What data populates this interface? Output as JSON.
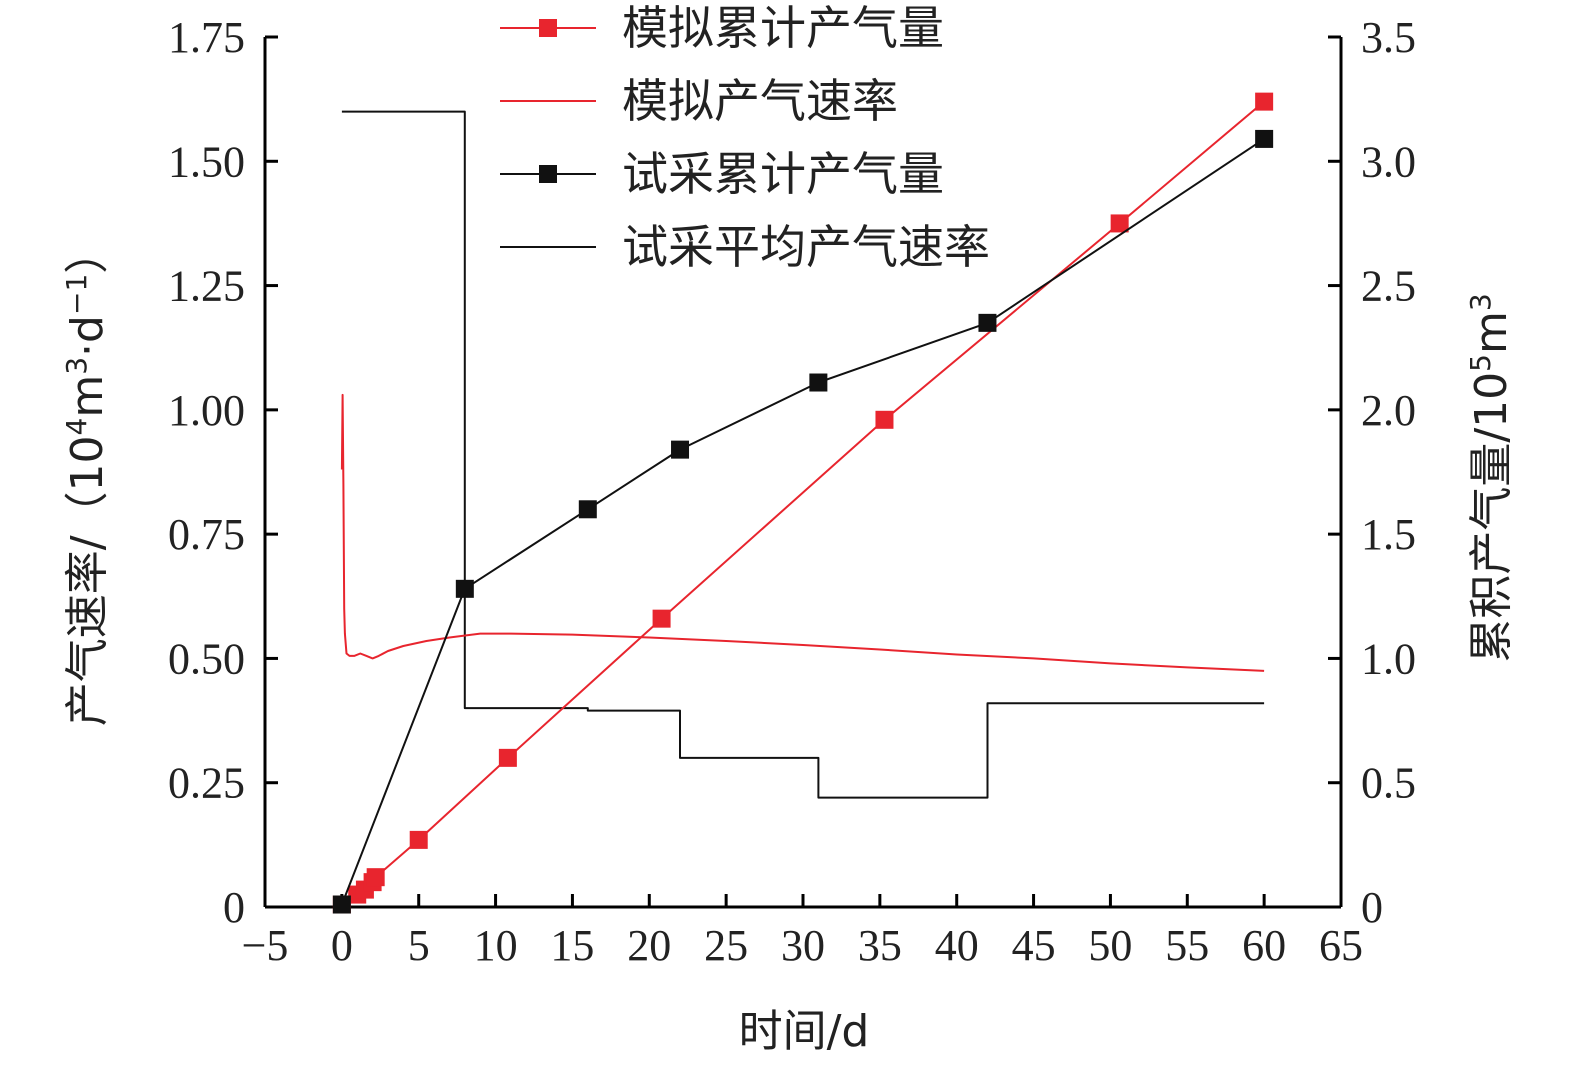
{
  "chart_data": {
    "type": "line",
    "xlabel": "时间/d",
    "ylabel_left_main": "产气速率/（10",
    "ylabel_left_sup1": "4",
    "ylabel_left_mid": "m",
    "ylabel_left_sup2": "3",
    "ylabel_left_mid2": "·d",
    "ylabel_left_sup3": "−1",
    "ylabel_left_end": "）",
    "ylabel_right_main": "累积产气量/10",
    "ylabel_right_sup1": "5",
    "ylabel_right_mid": "m",
    "ylabel_right_sup2": "3",
    "xlim": [
      -5,
      65
    ],
    "ylim_left": [
      0,
      1.75
    ],
    "ylim_right": [
      0,
      3.5
    ],
    "xticks": [
      "−5",
      "0",
      "5",
      "10",
      "15",
      "20",
      "25",
      "30",
      "35",
      "40",
      "45",
      "50",
      "55",
      "60",
      "65"
    ],
    "xtick_values": [
      -5,
      0,
      5,
      10,
      15,
      20,
      25,
      30,
      35,
      40,
      45,
      50,
      55,
      60,
      65
    ],
    "yticks_left": [
      "0",
      "0.25",
      "0.50",
      "0.75",
      "1.00",
      "1.25",
      "1.50",
      "1.75"
    ],
    "ytick_left_values": [
      0,
      0.25,
      0.5,
      0.75,
      1.0,
      1.25,
      1.5,
      1.75
    ],
    "yticks_right": [
      "0",
      "0.5",
      "1.0",
      "1.5",
      "2.0",
      "2.5",
      "3.0",
      "3.5"
    ],
    "ytick_right_values": [
      0,
      0.5,
      1.0,
      1.5,
      2.0,
      2.5,
      3.0,
      3.5
    ],
    "series": [
      {
        "name": "模拟累计产气量",
        "axis": "right",
        "color": "#e8252e",
        "marker": "square",
        "line": true,
        "x": [
          0,
          1,
          1.5,
          2,
          2.2,
          5,
          10.8,
          20.8,
          35.3,
          50.6,
          60
        ],
        "y": [
          0.01,
          0.05,
          0.07,
          0.1,
          0.12,
          0.27,
          0.6,
          1.16,
          1.96,
          2.75,
          3.24
        ]
      },
      {
        "name": "模拟产气速率",
        "axis": "left",
        "color": "#e8252e",
        "marker": "none",
        "line": true,
        "x": [
          0,
          0.05,
          0.1,
          0.15,
          0.2,
          0.3,
          0.5,
          0.8,
          1.2,
          1.6,
          2.0,
          2.4,
          3.0,
          4.0,
          5.5,
          7.0,
          9.0,
          11.0,
          15.0,
          20.0,
          25.0,
          30.0,
          35.0,
          40.0,
          45.0,
          50.0,
          55.0,
          60.0
        ],
        "y": [
          0.88,
          1.03,
          0.85,
          0.6,
          0.55,
          0.51,
          0.505,
          0.505,
          0.51,
          0.505,
          0.5,
          0.505,
          0.515,
          0.525,
          0.535,
          0.542,
          0.55,
          0.55,
          0.548,
          0.542,
          0.535,
          0.527,
          0.518,
          0.508,
          0.5,
          0.49,
          0.482,
          0.475
        ]
      },
      {
        "name": "试采累计产气量",
        "axis": "right",
        "color": "#111111",
        "marker": "square",
        "line": true,
        "x": [
          0,
          8,
          16,
          22,
          31,
          42,
          60
        ],
        "y": [
          0.01,
          1.28,
          1.6,
          1.84,
          2.11,
          2.35,
          3.09
        ]
      },
      {
        "name": "试采平均产气速率",
        "axis": "left",
        "color": "#111111",
        "marker": "none",
        "line": true,
        "step": true,
        "x": [
          0,
          8,
          8,
          16,
          16,
          22,
          22,
          31,
          31,
          42,
          42,
          60
        ],
        "y": [
          1.6,
          1.6,
          0.4,
          0.4,
          0.395,
          0.395,
          0.3,
          0.3,
          0.22,
          0.22,
          0.41,
          0.41
        ]
      }
    ]
  }
}
